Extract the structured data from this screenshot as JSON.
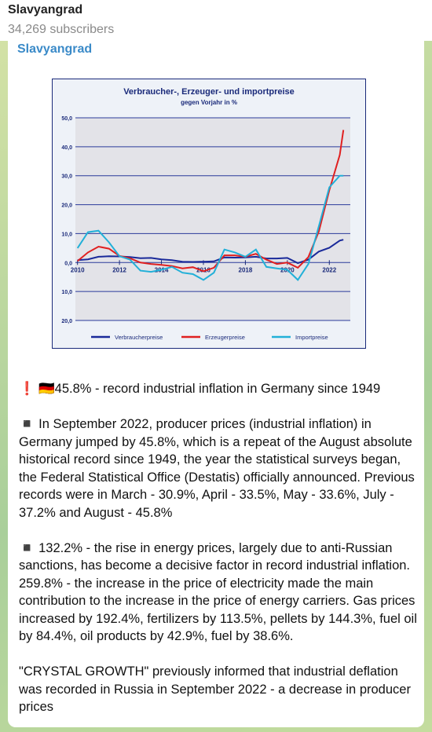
{
  "header": {
    "title": "Slavyangrad",
    "subtitle": "34,269 subscribers"
  },
  "message": {
    "author": "Slavyangrad",
    "paragraphs": [
      "❗️ 🇩🇪45.8% - record industrial inflation in Germany since 1949",
      "◾️ In September 2022, producer prices (industrial inflation) in Germany jumped by 45.8%, which is a repeat of the August absolute historical record since 1949, the year the statistical surveys began, the Federal Statistical Office (Destatis) officially announced. Previous records were in March - 30.9%, April - 33.5%, May - 33.6%, July - 37.2% and August - 45.8%",
      "◾️ 132.2% - the rise in energy prices, largely due to anti-Russian sanctions, has become a decisive factor in record industrial inflation. 259.8% - the increase in the price of electricity made the main contribution to the increase in the price of energy carriers. Gas prices increased by 192.4%, fertilizers by 113.5%, pellets by 144.3%, fuel oil by 84.4%, oil products by 42.9%, fuel by 38.6%.",
      "\"CRYSTAL GROWTH\" previously informed that industrial deflation was recorded in Russia in September 2022 - a decrease in producer prices"
    ]
  },
  "chart_data": {
    "type": "line",
    "title": "Verbraucher-, Erzeuger- und importpreise",
    "subtitle": "gegen Vorjahr in %",
    "x": [
      2010,
      2010.5,
      2011,
      2011.5,
      2012,
      2012.5,
      2013,
      2013.5,
      2014,
      2014.5,
      2015,
      2015.5,
      2016,
      2016.5,
      2017,
      2017.5,
      2018,
      2018.5,
      2019,
      2019.5,
      2020,
      2020.5,
      2021,
      2021.5,
      2022,
      2022.5,
      2022.67
    ],
    "xlim": [
      2009.9,
      2023
    ],
    "xticks": [
      2010,
      2012,
      2014,
      2016,
      2018,
      2020,
      2022
    ],
    "ylim": [
      -20,
      50
    ],
    "yticks": [
      {
        "value": 50,
        "label": "50,0"
      },
      {
        "value": 40,
        "label": "40,0"
      },
      {
        "value": 30,
        "label": "30,0"
      },
      {
        "value": 20,
        "label": "20,0"
      },
      {
        "value": 10,
        "label": "10,0"
      },
      {
        "value": 0,
        "label": "0,0"
      },
      {
        "value": -10,
        "label": "10,0"
      },
      {
        "value": -20,
        "label": "20,0"
      }
    ],
    "grid": true,
    "series": [
      {
        "name": "Verbraucherpreise",
        "color": "#1a2a9a",
        "values": [
          0.8,
          1.1,
          2,
          2.2,
          2.1,
          1.9,
          1.5,
          1.6,
          1.1,
          0.8,
          0.3,
          0.2,
          0.3,
          0.4,
          1.8,
          1.7,
          1.8,
          2,
          1.4,
          1.4,
          1.6,
          -0.2,
          1,
          3.8,
          5.1,
          7.6,
          7.9
        ]
      },
      {
        "name": "Erzeugerpreise",
        "color": "#e02020",
        "values": [
          0.5,
          3.5,
          5.5,
          4.8,
          2.3,
          1.5,
          0,
          -0.5,
          -0.8,
          -1.2,
          -2,
          -1.6,
          -3,
          -1.8,
          2.5,
          2.5,
          2,
          3,
          1,
          -0.5,
          0,
          -1.8,
          1.9,
          10.7,
          25,
          37.2,
          45.8
        ]
      },
      {
        "name": "Importpreise",
        "color": "#22b0d8",
        "values": [
          5,
          10.5,
          11,
          7,
          2.2,
          1,
          -2.8,
          -3.2,
          -2.5,
          -1.5,
          -3.5,
          -4,
          -6,
          -3.5,
          4.5,
          3.5,
          2,
          4.5,
          -1.5,
          -2,
          -2.5,
          -6,
          -0.5,
          12.5,
          26,
          30,
          30
        ]
      }
    ]
  }
}
